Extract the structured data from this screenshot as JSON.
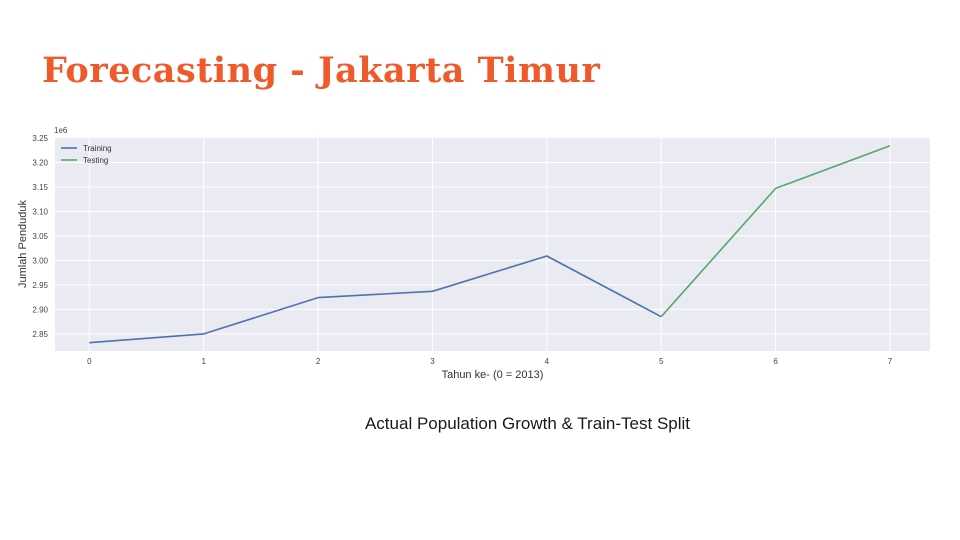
{
  "slide": {
    "title": "Forecasting - Jakarta Timur",
    "caption": "Actual Population Growth & Train-Test Split"
  },
  "colors": {
    "title": "#f0592a",
    "plot_bg": "#eaeaf2",
    "grid": "#ffffff",
    "training": "#4c72b0",
    "testing": "#55a868"
  },
  "chart_data": {
    "type": "line",
    "xlabel": "Tahun ke- (0 = 2013)",
    "ylabel": "Jumlah Penduduk",
    "scale_label": "1e6",
    "xlim": [
      -0.3,
      7.35
    ],
    "ylim": [
      2.815,
      3.252
    ],
    "x_ticks": [
      0,
      1,
      2,
      3,
      4,
      5,
      6,
      7
    ],
    "y_ticks": [
      2.85,
      2.9,
      2.95,
      3.0,
      3.05,
      3.1,
      3.15,
      3.2,
      3.25
    ],
    "y_tick_labels": [
      "2.85",
      "2.90",
      "2.95",
      "3.00",
      "3.05",
      "3.10",
      "3.15",
      "3.20",
      "3.25"
    ],
    "grid": true,
    "legend_position": "top-left",
    "series": [
      {
        "name": "Training",
        "x": [
          0,
          1,
          2,
          3,
          4,
          5
        ],
        "values": [
          2.832,
          2.85,
          2.924,
          2.937,
          3.009,
          2.885
        ]
      },
      {
        "name": "Testing",
        "x": [
          5,
          6,
          7
        ],
        "values": [
          2.885,
          3.147,
          3.234
        ]
      }
    ]
  }
}
